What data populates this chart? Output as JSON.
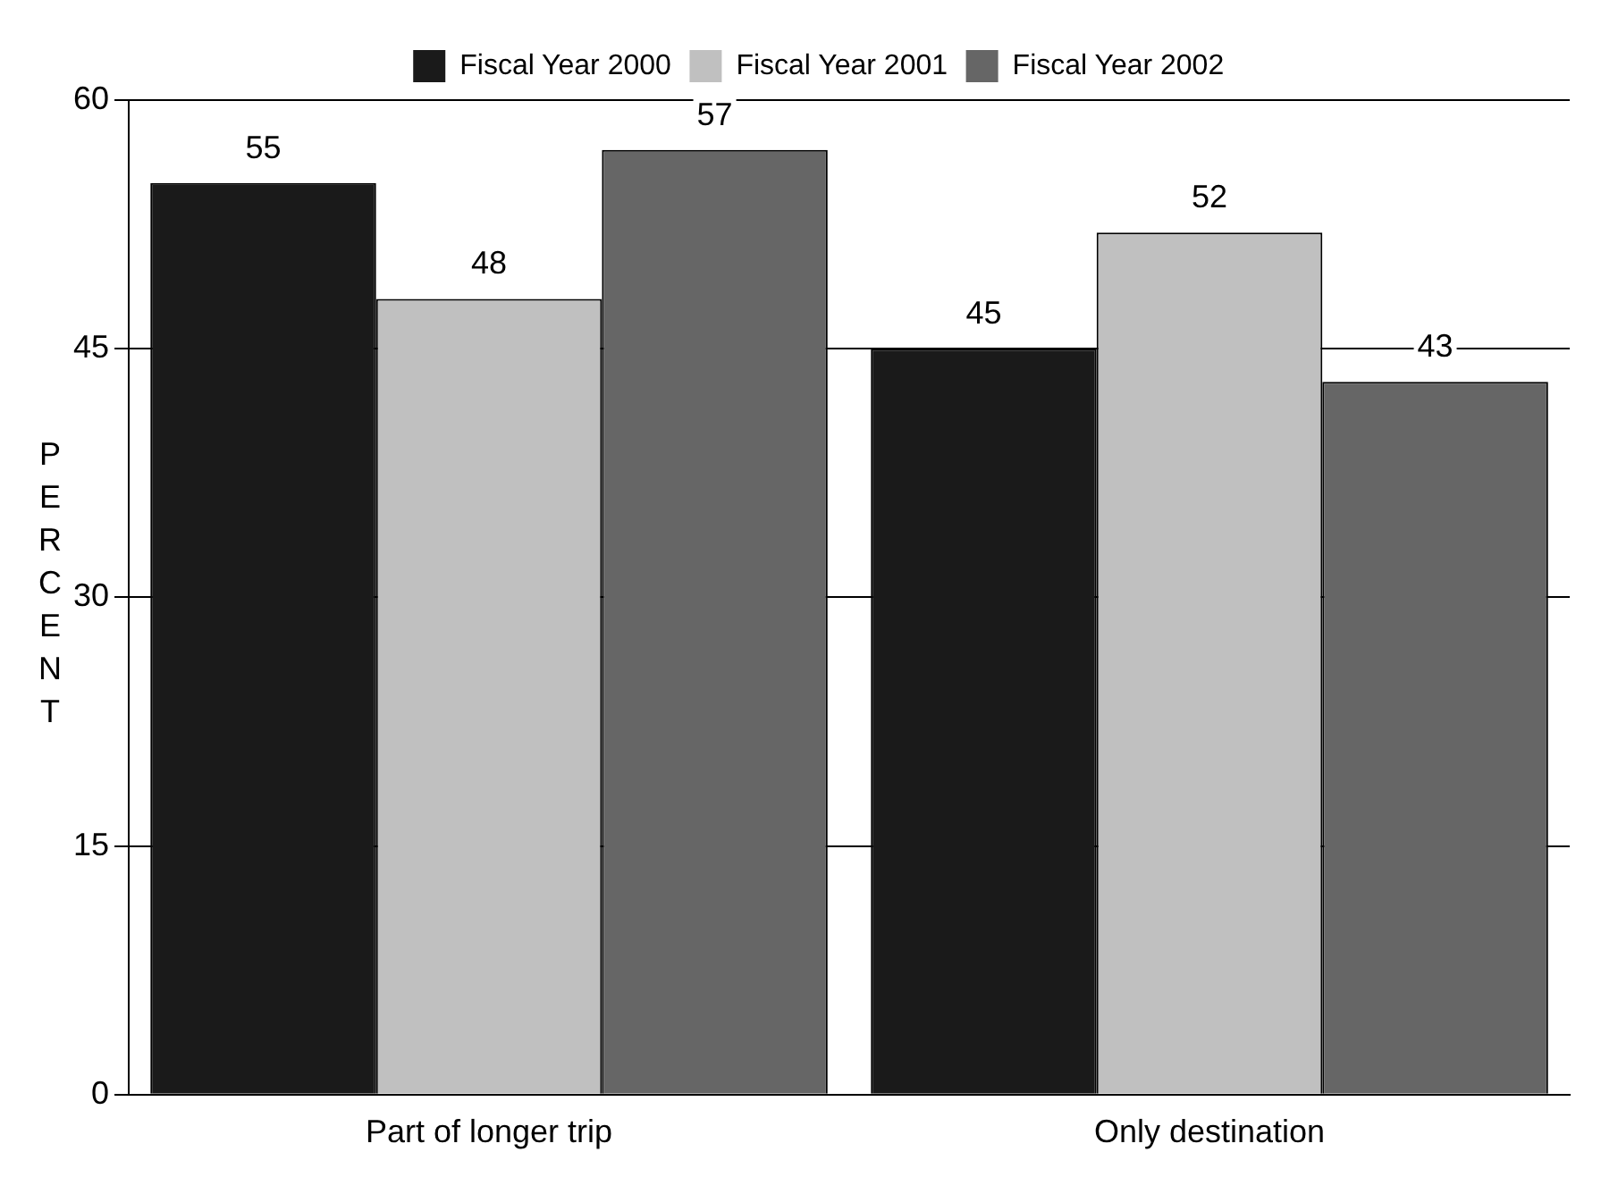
{
  "chart_data": {
    "type": "bar",
    "ylabel": "PERCENT",
    "categories": [
      "Part of longer trip",
      "Only destination"
    ],
    "series": [
      {
        "name": "Fiscal Year 2000",
        "color": "#1a1a1a",
        "values": [
          55,
          45
        ]
      },
      {
        "name": "Fiscal Year 2001",
        "color": "#c0c0c0",
        "values": [
          48,
          52
        ]
      },
      {
        "name": "Fiscal Year 2002",
        "color": "#666666",
        "values": [
          57,
          43
        ]
      }
    ],
    "ylim": [
      0,
      60
    ],
    "yticks": [
      0,
      15,
      30,
      45,
      60
    ],
    "grid": "y",
    "legend": "top",
    "data_labels": true
  }
}
